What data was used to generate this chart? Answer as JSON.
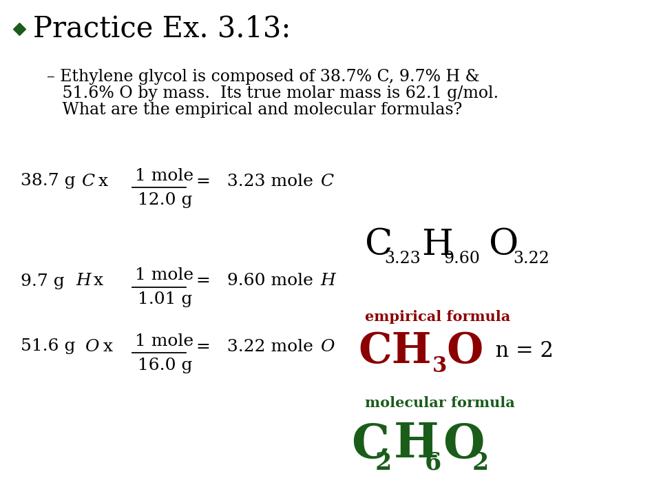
{
  "bg_color": "#ffffff",
  "dark_green": "#1a5c1a",
  "dark_red": "#8b0000",
  "black": "#000000",
  "title": "Practice Ex. 3.13:",
  "subtitle_line1": "– Ethylene glycol is composed of 38.7% C, 9.7% H &",
  "subtitle_line2": "   51.6% O by mass.  Its true molar mass is 62.1 g/mol.",
  "subtitle_line3": "   What are the empirical and molecular formulas?"
}
